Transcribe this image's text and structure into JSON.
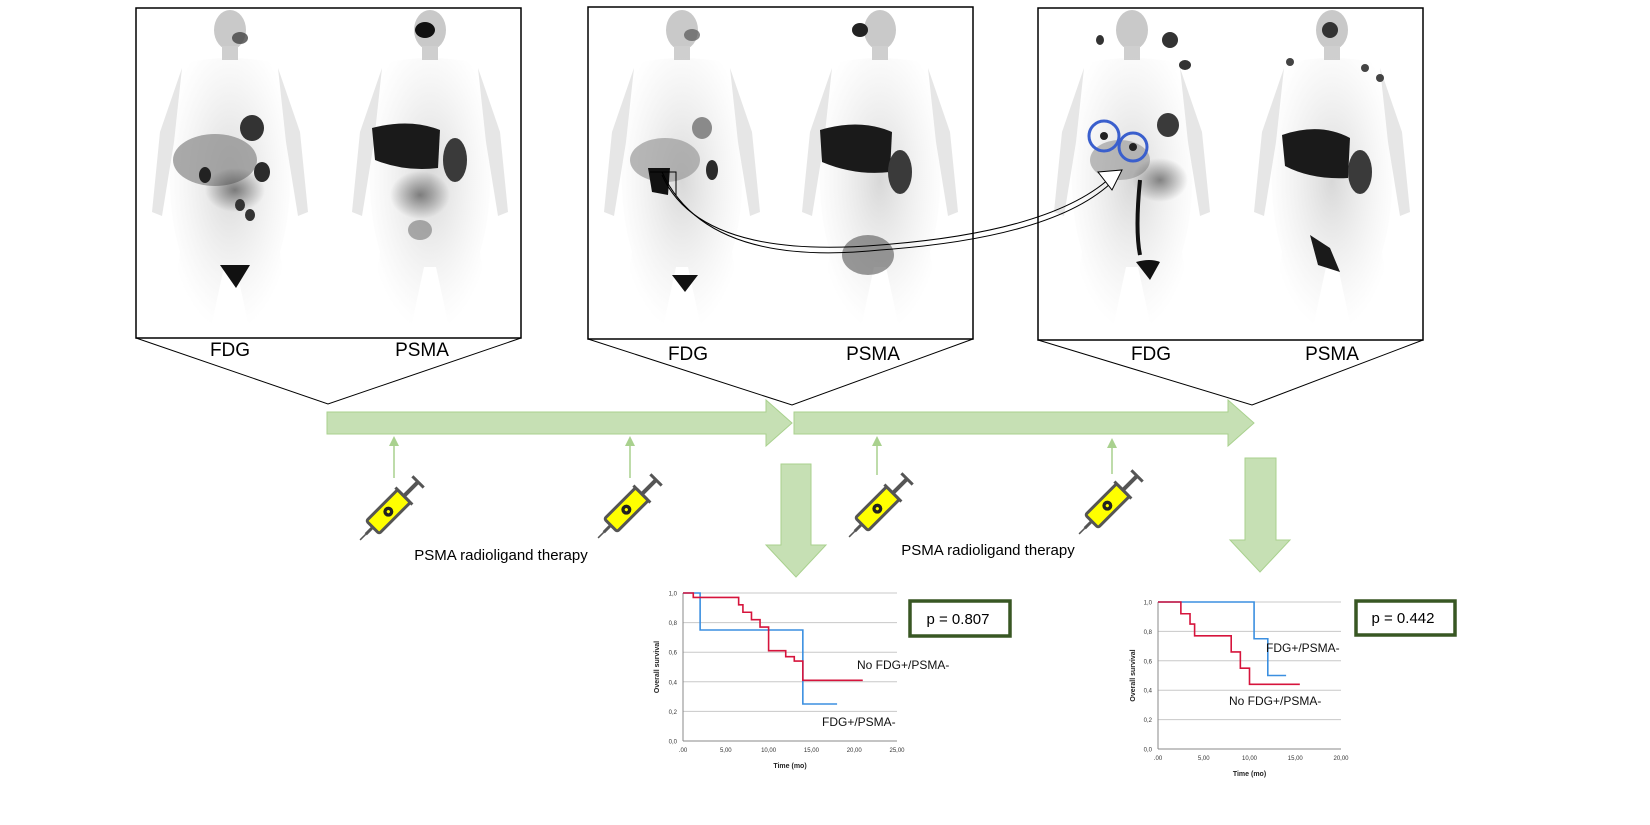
{
  "panels": [
    {
      "left_label": "FDG",
      "right_label": "PSMA"
    },
    {
      "left_label": "FDG",
      "right_label": "PSMA"
    },
    {
      "left_label": "FDG",
      "right_label": "PSMA"
    }
  ],
  "therapy_labels": [
    "PSMA radioligand therapy",
    "PSMA radioligand therapy"
  ],
  "p_values": [
    "p = 0.807",
    "p = 0.442"
  ],
  "colors": {
    "green_arrow": "#c6e0b4",
    "green_arrow_stroke": "#a9d18e",
    "pvalue_border": "#385723",
    "series_blue": "#3b8fe0",
    "series_red": "#d6143c",
    "circle_blue": "#3a5fcd",
    "syringe_yellow": "#ffff00"
  },
  "chart_data": [
    {
      "type": "line",
      "xlabel": "Time (mo)",
      "ylabel": "Overall survival",
      "xticks": [
        ".00",
        "5,00",
        "10,00",
        "15,00",
        "20,00",
        "25,00"
      ],
      "yticks": [
        "0,0",
        "0,2",
        "0,4",
        "0,6",
        "0,8",
        "1,0"
      ],
      "xlim": [
        0,
        25
      ],
      "ylim": [
        0,
        1
      ],
      "annotations": [
        "No FDG+/PSMA-",
        "FDG+/PSMA-"
      ],
      "series": [
        {
          "name": "FDG+/PSMA-",
          "color": "#3b8fe0",
          "x": [
            0,
            1.5,
            2,
            14,
            14,
            18
          ],
          "y": [
            1,
            1,
            0.75,
            0.75,
            0.25,
            0.25
          ]
        },
        {
          "name": "No FDG+/PSMA-",
          "color": "#d6143c",
          "x": [
            0,
            0.8,
            1.2,
            2,
            6,
            6.5,
            7,
            8,
            9,
            10,
            11,
            12,
            13,
            14,
            21
          ],
          "y": [
            1,
            1,
            0.97,
            0.97,
            0.97,
            0.92,
            0.87,
            0.82,
            0.77,
            0.61,
            0.61,
            0.57,
            0.54,
            0.41,
            0.41
          ]
        }
      ]
    },
    {
      "type": "line",
      "xlabel": "Time (mo)",
      "ylabel": "Overall survival",
      "xticks": [
        ".00",
        "5,00",
        "10,00",
        "15,00",
        "20,00"
      ],
      "yticks": [
        "0,0",
        "0,2",
        "0,4",
        "0,6",
        "0,8",
        "1,0"
      ],
      "xlim": [
        0,
        20
      ],
      "ylim": [
        0,
        1
      ],
      "annotations": [
        "FDG+/PSMA-",
        "No FDG+/PSMA-"
      ],
      "series": [
        {
          "name": "FDG+/PSMA-",
          "color": "#3b8fe0",
          "x": [
            0,
            10,
            10.5,
            11,
            12,
            14
          ],
          "y": [
            1,
            1,
            0.75,
            0.75,
            0.5,
            0.5
          ]
        },
        {
          "name": "No FDG+/PSMA-",
          "color": "#d6143c",
          "x": [
            0,
            2,
            2.5,
            3,
            3.5,
            4,
            7,
            8,
            8.5,
            9,
            10,
            15.5
          ],
          "y": [
            1,
            1,
            0.92,
            0.92,
            0.85,
            0.77,
            0.77,
            0.66,
            0.66,
            0.55,
            0.44,
            0.44
          ]
        }
      ]
    }
  ]
}
